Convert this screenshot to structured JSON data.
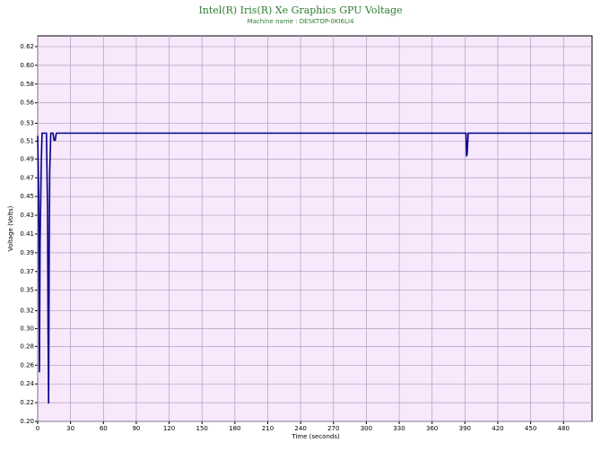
{
  "chart_data": {
    "type": "line",
    "title": "Intel(R) Iris(R) Xe Graphics GPU Voltage",
    "subtitle": "Machine name : DESKTOP-0KI6LI4",
    "x_label": "Time (seconds)",
    "y_label": "Voltage (Volts)",
    "x": [
      0,
      1,
      1.6,
      2.2,
      3.3,
      4,
      8,
      9,
      9.5,
      10,
      10.5,
      11,
      12,
      14,
      15,
      16,
      17,
      390,
      391,
      391.5,
      392,
      393,
      506
    ],
    "series": [
      {
        "color": "#00008b",
        "values": [
          0.52,
          0.45,
          0.255,
          0.4,
          0.49,
          0.523,
          0.523,
          0.44,
          0.3,
          0.22,
          0.38,
          0.48,
          0.523,
          0.523,
          0.515,
          0.515,
          0.523,
          0.523,
          0.523,
          0.497,
          0.5,
          0.523,
          0.523
        ]
      }
    ],
    "xlim": [
      0,
      506
    ],
    "xticks": [
      0,
      30,
      60,
      90,
      120,
      150,
      180,
      210,
      240,
      270,
      300,
      330,
      360,
      390,
      420,
      450,
      480
    ],
    "ylim": [
      0.2,
      0.632
    ],
    "yticks": [
      {
        "value": 0.2,
        "label": "0.20"
      },
      {
        "value": 0.221,
        "label": "0.22"
      },
      {
        "value": 0.242,
        "label": "0.24"
      },
      {
        "value": 0.263,
        "label": "0.26"
      },
      {
        "value": 0.284,
        "label": "0.28"
      },
      {
        "value": 0.304,
        "label": "0.30"
      },
      {
        "value": 0.324,
        "label": "0.32"
      },
      {
        "value": 0.347,
        "label": "0.35"
      },
      {
        "value": 0.368,
        "label": "0.37"
      },
      {
        "value": 0.389,
        "label": "0.39"
      },
      {
        "value": 0.41,
        "label": "0.41"
      },
      {
        "value": 0.431,
        "label": "0.43"
      },
      {
        "value": 0.452,
        "label": "0.45"
      },
      {
        "value": 0.473,
        "label": "0.47"
      },
      {
        "value": 0.494,
        "label": "0.49"
      },
      {
        "value": 0.514,
        "label": "0.51"
      },
      {
        "value": 0.534,
        "label": "0.53"
      },
      {
        "value": 0.557,
        "label": "0.56"
      },
      {
        "value": 0.578,
        "label": "0.58"
      },
      {
        "value": 0.599,
        "label": "0.60"
      },
      {
        "value": 0.62,
        "label": "0.62"
      }
    ],
    "grid": true
  }
}
